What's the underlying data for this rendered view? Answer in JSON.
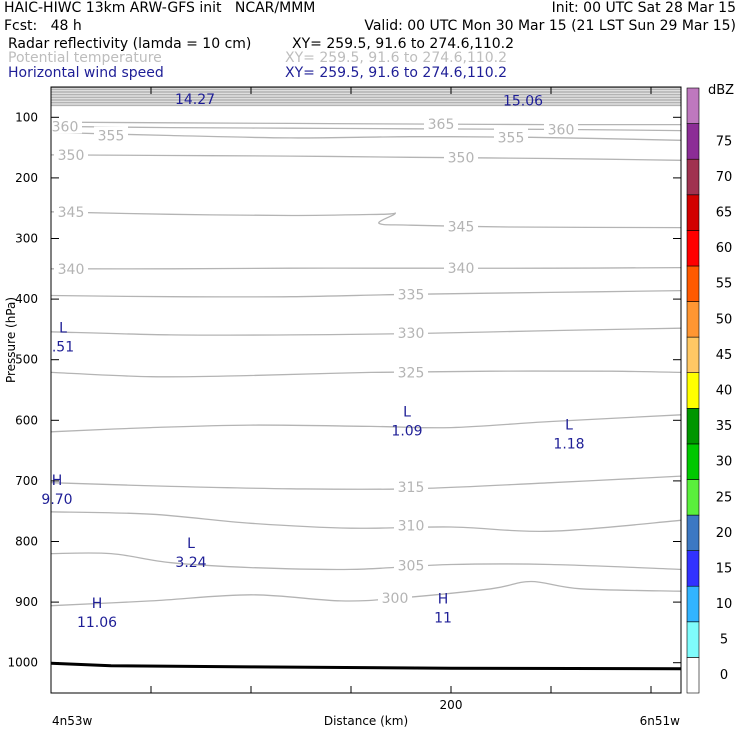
{
  "header": {
    "title_left": "HAIC-HIWC 13km ARW-GFS init   NCAR/MMM",
    "init": "Init: 00 UTC Sat 28 Mar 15",
    "fcst": "Fcst:   48 h",
    "valid": "Valid: 00 UTC Mon 30 Mar 15 (21 LST Sun 29 Mar 15)",
    "fields": [
      {
        "name": "Radar reflectivity (lamda = 10 cm)",
        "xy": "XY= 259.5, 91.6 to 274.6,110.2",
        "color": "#000000"
      },
      {
        "name": "Potential temperature",
        "xy": "XY= 259.5, 91.6 to 274.6,110.2",
        "color": "#bdbdbd"
      },
      {
        "name": "Horizontal wind speed",
        "xy": "XY= 259.5, 91.6 to 274.6,110.2",
        "color": "#1e1e96"
      }
    ]
  },
  "chart_data": {
    "type": "contour",
    "xlabel": "Distance (km)",
    "ylabel": "Pressure (hPa)",
    "x_ticks": [
      {
        "value": 200,
        "label": "200"
      }
    ],
    "x_end_labels": {
      "left": "4n53w",
      "right": "6n51w"
    },
    "xlim": [
      0,
      315
    ],
    "ylim": [
      1050,
      50
    ],
    "y_ticks": [
      100,
      200,
      300,
      400,
      500,
      600,
      700,
      800,
      900,
      1000
    ],
    "surface_pressure": [
      [
        0,
        1001
      ],
      [
        30,
        1005
      ],
      [
        100,
        1007
      ],
      [
        200,
        1009
      ],
      [
        315,
        1010
      ]
    ],
    "theta_contours": [
      {
        "level": 300,
        "points": [
          [
            0,
            906
          ],
          [
            50,
            898
          ],
          [
            100,
            888
          ],
          [
            145,
            898
          ],
          [
            175,
            893
          ],
          [
            220,
            878
          ],
          [
            240,
            866
          ],
          [
            265,
            878
          ],
          [
            315,
            882
          ]
        ],
        "labels": [
          {
            "x": 172,
            "p": 893,
            "text": "300"
          }
        ]
      },
      {
        "level": 305,
        "points": [
          [
            0,
            820
          ],
          [
            30,
            820
          ],
          [
            60,
            835
          ],
          [
            100,
            843
          ],
          [
            150,
            846
          ],
          [
            200,
            838
          ],
          [
            250,
            838
          ],
          [
            315,
            846
          ]
        ],
        "labels": [
          {
            "x": 180,
            "p": 840,
            "text": "305"
          }
        ]
      },
      {
        "level": 310,
        "points": [
          [
            0,
            751
          ],
          [
            50,
            755
          ],
          [
            100,
            770
          ],
          [
            150,
            778
          ],
          [
            200,
            776
          ],
          [
            250,
            783
          ],
          [
            315,
            765
          ]
        ],
        "labels": [
          {
            "x": 180,
            "p": 774,
            "text": "310"
          }
        ]
      },
      {
        "level": 315,
        "points": [
          [
            0,
            703
          ],
          [
            60,
            709
          ],
          [
            120,
            713
          ],
          [
            180,
            713
          ],
          [
            250,
            703
          ],
          [
            315,
            692
          ]
        ],
        "labels": [
          {
            "x": 180,
            "p": 710,
            "text": "315"
          }
        ]
      },
      {
        "level": 320,
        "points": [
          [
            0,
            619
          ],
          [
            50,
            612
          ],
          [
            100,
            608
          ],
          [
            160,
            610
          ],
          [
            200,
            612
          ],
          [
            250,
            602
          ],
          [
            315,
            591
          ]
        ],
        "labels": []
      },
      {
        "level": 325,
        "points": [
          [
            0,
            521
          ],
          [
            50,
            528
          ],
          [
            100,
            526
          ],
          [
            160,
            521
          ],
          [
            220,
            519
          ],
          [
            280,
            519
          ],
          [
            315,
            521
          ]
        ],
        "labels": [
          {
            "x": 180,
            "p": 521,
            "text": "325"
          }
        ]
      },
      {
        "level": 330,
        "points": [
          [
            0,
            454
          ],
          [
            60,
            459
          ],
          [
            120,
            459
          ],
          [
            180,
            457
          ],
          [
            250,
            452
          ],
          [
            315,
            448
          ]
        ],
        "labels": [
          {
            "x": 180,
            "p": 456,
            "text": "330"
          }
        ]
      },
      {
        "level": 335,
        "points": [
          [
            0,
            394
          ],
          [
            60,
            396
          ],
          [
            120,
            396
          ],
          [
            180,
            392
          ],
          [
            250,
            389
          ],
          [
            315,
            386
          ]
        ],
        "labels": [
          {
            "x": 180,
            "p": 392,
            "text": "335"
          }
        ]
      },
      {
        "level": 340,
        "points": [
          [
            0,
            350
          ],
          [
            60,
            350
          ],
          [
            120,
            349
          ],
          [
            180,
            349
          ],
          [
            250,
            349
          ],
          [
            315,
            348
          ]
        ],
        "labels": [
          {
            "x": 10,
            "p": 350,
            "text": "340"
          },
          {
            "x": 205,
            "p": 349,
            "text": "340"
          }
        ]
      },
      {
        "level": 345,
        "points": [
          [
            0,
            256
          ],
          [
            60,
            260
          ],
          [
            120,
            262
          ],
          [
            165,
            260
          ],
          [
            172,
            259
          ],
          [
            164,
            275
          ],
          [
            180,
            278
          ],
          [
            230,
            281
          ],
          [
            315,
            282
          ]
        ],
        "labels": [
          {
            "x": 10,
            "p": 256,
            "text": "345"
          },
          {
            "x": 205,
            "p": 280,
            "text": "345"
          }
        ]
      },
      {
        "level": 350,
        "points": [
          [
            0,
            162
          ],
          [
            60,
            163
          ],
          [
            120,
            164
          ],
          [
            180,
            166
          ],
          [
            250,
            168
          ],
          [
            315,
            171
          ]
        ],
        "labels": [
          {
            "x": 10,
            "p": 162,
            "text": "350"
          },
          {
            "x": 205,
            "p": 166,
            "text": "350"
          }
        ]
      },
      {
        "level": 355,
        "points": [
          [
            0,
            125
          ],
          [
            60,
            130
          ],
          [
            120,
            134
          ],
          [
            180,
            132
          ],
          [
            240,
            133
          ],
          [
            315,
            138
          ]
        ],
        "labels": [
          {
            "x": 30,
            "p": 130,
            "text": "355"
          },
          {
            "x": 230,
            "p": 133,
            "text": "355"
          }
        ]
      },
      {
        "level": 360,
        "points": [
          [
            0,
            115
          ],
          [
            60,
            117
          ],
          [
            120,
            118
          ],
          [
            180,
            119
          ],
          [
            250,
            120
          ],
          [
            315,
            122
          ]
        ],
        "labels": [
          {
            "x": 7,
            "p": 115,
            "text": "360"
          },
          {
            "x": 255,
            "p": 120,
            "text": "360"
          }
        ]
      },
      {
        "level": 365,
        "points": [
          [
            0,
            108
          ],
          [
            60,
            109
          ],
          [
            120,
            110
          ],
          [
            180,
            111
          ],
          [
            250,
            112
          ],
          [
            315,
            112
          ]
        ],
        "labels": [
          {
            "x": 195,
            "p": 111,
            "text": "365"
          }
        ]
      }
    ],
    "wind_labels": [
      {
        "x": 72,
        "p": 70,
        "letter": "",
        "value": "14.27"
      },
      {
        "x": 236,
        "p": 72,
        "letter": "",
        "value": "15.06"
      },
      {
        "x": 6,
        "p": 478,
        "letter": "L",
        "value": ".51"
      },
      {
        "x": 178,
        "p": 617,
        "letter": "L",
        "value": "1.09"
      },
      {
        "x": 259,
        "p": 638,
        "letter": "L",
        "value": "1.18"
      },
      {
        "x": 3,
        "p": 730,
        "letter": "H",
        "value": "9.70"
      },
      {
        "x": 70,
        "p": 834,
        "letter": "L",
        "value": "3.24"
      },
      {
        "x": 23,
        "p": 933,
        "letter": "H",
        "value": "11.06"
      },
      {
        "x": 196,
        "p": 925,
        "letter": "H",
        "value": "11"
      }
    ],
    "colorbar": {
      "title": "dBZ",
      "levels": [
        0,
        5,
        10,
        15,
        20,
        25,
        30,
        35,
        40,
        45,
        50,
        55,
        60,
        65,
        70,
        75
      ],
      "colors": [
        "#ffffff",
        "#7ffcfc",
        "#32b4ff",
        "#3232ff",
        "#3c78c3",
        "#5af03c",
        "#00c800",
        "#009600",
        "#ffff00",
        "#ffc864",
        "#ff9632",
        "#ff5a00",
        "#ff0000",
        "#d20000",
        "#a03250",
        "#8c2d96",
        "#be78be"
      ]
    }
  }
}
